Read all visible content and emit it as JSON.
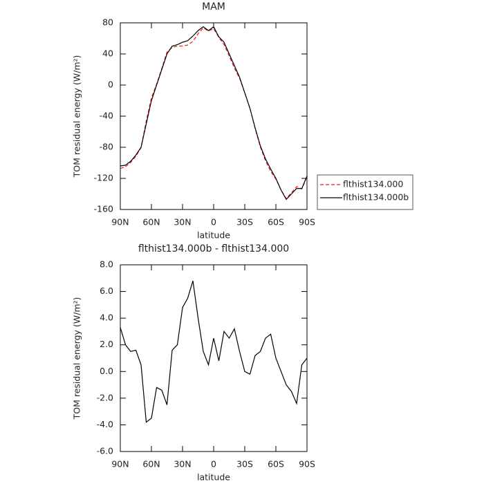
{
  "chart_data": [
    {
      "type": "line",
      "title": "MAM",
      "xlabel": "latitude",
      "ylabel": "TOM residual energy (W/m²)",
      "x": [
        90,
        85,
        80,
        75,
        70,
        65,
        60,
        55,
        50,
        45,
        40,
        35,
        30,
        25,
        20,
        15,
        10,
        5,
        0,
        -5,
        -10,
        -15,
        -20,
        -25,
        -30,
        -35,
        -40,
        -45,
        -50,
        -55,
        -60,
        -65,
        -70,
        -75,
        -80,
        -85,
        -90
      ],
      "xlim": [
        90,
        -90
      ],
      "xticks": [
        {
          "value": 90,
          "label": "90N"
        },
        {
          "value": 60,
          "label": "60N"
        },
        {
          "value": 30,
          "label": "30N"
        },
        0,
        {
          "value": -30,
          "label": "30S"
        },
        {
          "value": -60,
          "label": "60S"
        },
        {
          "value": -90,
          "label": "90S"
        }
      ],
      "ylim": [
        -160,
        80
      ],
      "yticks": [
        80,
        40,
        0,
        -40,
        -80,
        -120,
        -160
      ],
      "legend": "outside-right",
      "series": [
        {
          "name": "flthist134.000",
          "color": "#e41a1c",
          "linestyle": "dashed",
          "values": [
            -107.3,
            -105,
            -99.5,
            -91.6,
            -80.5,
            -46.2,
            -16.5,
            1.2,
            21.4,
            42.5,
            48.4,
            50,
            50.2,
            51.5,
            56.2,
            66,
            73.5,
            69.5,
            72.5,
            61.2,
            52,
            37.5,
            21.8,
            8.5,
            -10,
            -29.8,
            -56.2,
            -79.5,
            -97.5,
            -110.8,
            -121,
            -135,
            -146,
            -138.5,
            -130.6,
            -133.5,
            -118
          ]
        },
        {
          "name": "flthist134.000b",
          "color": "#000000",
          "linestyle": "solid",
          "values": [
            -104,
            -103,
            -98,
            -90,
            -80,
            -50,
            -20,
            0,
            20,
            40,
            50,
            52,
            55,
            57,
            63,
            70,
            75,
            70,
            75,
            62,
            55,
            40,
            25,
            10,
            -10,
            -30,
            -55,
            -78,
            -95,
            -108,
            -120,
            -135,
            -147,
            -140,
            -133,
            -133,
            -117
          ]
        }
      ]
    },
    {
      "type": "line",
      "title": "flthist134.000b - flthist134.000",
      "xlabel": "latitude",
      "ylabel": "TOM residual energy (W/m²)",
      "x": [
        90,
        85,
        80,
        75,
        70,
        65,
        60,
        55,
        50,
        45,
        40,
        35,
        30,
        25,
        20,
        15,
        10,
        5,
        0,
        -5,
        -10,
        -15,
        -20,
        -25,
        -30,
        -35,
        -40,
        -45,
        -50,
        -55,
        -60,
        -65,
        -70,
        -75,
        -80,
        -85,
        -90
      ],
      "xlim": [
        90,
        -90
      ],
      "xticks": [
        {
          "value": 90,
          "label": "90N"
        },
        {
          "value": 60,
          "label": "60N"
        },
        {
          "value": 30,
          "label": "30N"
        },
        0,
        {
          "value": -30,
          "label": "30S"
        },
        {
          "value": -60,
          "label": "60S"
        },
        {
          "value": -90,
          "label": "90S"
        }
      ],
      "ylim": [
        -6,
        8
      ],
      "yticks": [
        {
          "value": 8,
          "label": "8.0"
        },
        {
          "value": 6,
          "label": "6.0"
        },
        {
          "value": 4,
          "label": "4.0"
        },
        {
          "value": 2,
          "label": "2.0"
        },
        {
          "value": 0,
          "label": "0.0"
        },
        {
          "value": -2,
          "label": "-2.0"
        },
        {
          "value": -4,
          "label": "-4.0"
        },
        {
          "value": -6,
          "label": "-6.0"
        }
      ],
      "series": [
        {
          "color": "#000000",
          "linestyle": "solid",
          "values": [
            3.3,
            2.0,
            1.5,
            1.6,
            0.5,
            -3.8,
            -3.5,
            -1.2,
            -1.4,
            -2.5,
            1.6,
            2.0,
            4.8,
            5.5,
            6.8,
            4.0,
            1.5,
            0.5,
            2.5,
            0.8,
            3.0,
            2.5,
            3.2,
            1.5,
            0.0,
            -0.2,
            1.2,
            1.5,
            2.5,
            2.8,
            1.0,
            0.0,
            -1.0,
            -1.5,
            -2.4,
            0.5,
            1.0
          ]
        }
      ]
    }
  ]
}
